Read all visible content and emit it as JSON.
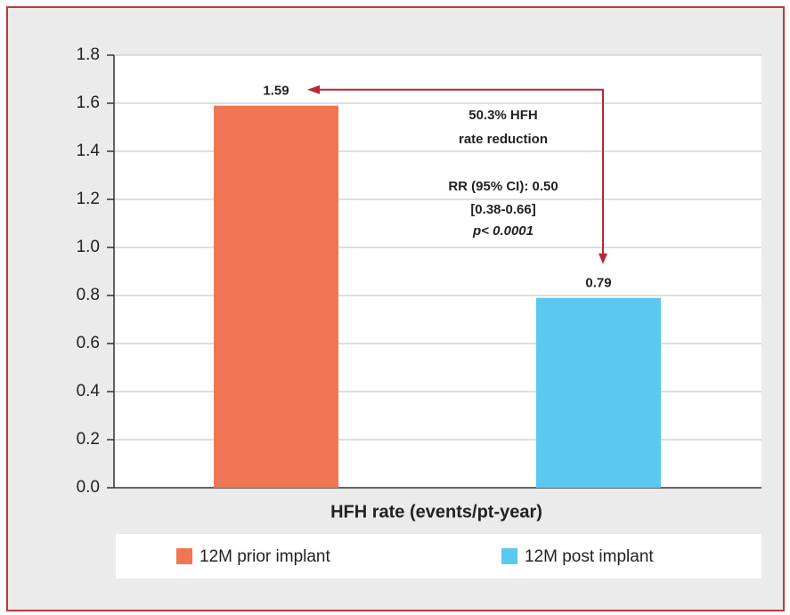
{
  "chart_data": {
    "type": "bar",
    "xlabel": "HFH rate (events/pt-year)",
    "series": [
      {
        "name": "12M prior implant",
        "color": "#f07654",
        "values": [
          1.59
        ]
      },
      {
        "name": "12M post implant",
        "color": "#5bc8f0",
        "values": [
          0.79
        ]
      }
    ],
    "ylim": [
      0,
      1.8
    ],
    "yticks": [
      {
        "value": 0,
        "label": "0.0"
      },
      0.2,
      0.4,
      0.6,
      0.8,
      {
        "value": 1,
        "label": "1.0"
      },
      1.2,
      1.4,
      1.6,
      1.8
    ],
    "grid": true,
    "legend": "bottom",
    "annotations": [
      "50.3% HFH",
      "rate reduction",
      "RR (95% CI): 0.50",
      "[0.38-0.66]",
      "p< 0.0001"
    ]
  }
}
